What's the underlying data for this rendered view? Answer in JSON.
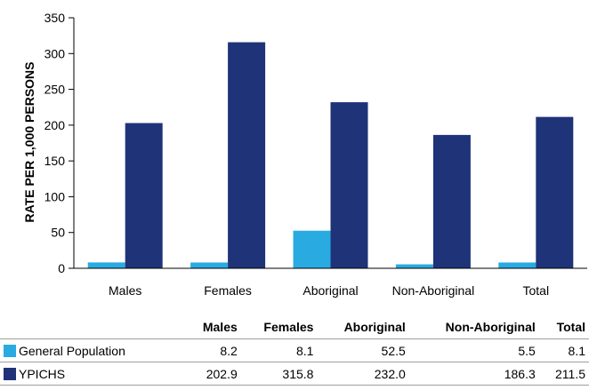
{
  "chart_data": {
    "type": "bar",
    "ylabel": "RATE PER 1,000 PERSONS",
    "xlabel": "",
    "ylim": [
      0,
      350
    ],
    "yticks": [
      0,
      50,
      100,
      150,
      200,
      250,
      300,
      350
    ],
    "categories": [
      "Males",
      "Females",
      "Aboriginal",
      "Non-Aboriginal",
      "Total"
    ],
    "series": [
      {
        "name": "General Population",
        "color": "#29abe2",
        "values": [
          8.2,
          8.1,
          52.5,
          5.5,
          8.1
        ],
        "labels": [
          "8.2",
          "8.1",
          "52.5",
          "5.5",
          "8.1"
        ]
      },
      {
        "name": "YPICHS",
        "color": "#1f3378",
        "values": [
          202.9,
          315.8,
          232.0,
          186.3,
          211.5
        ],
        "labels": [
          "202.9",
          "315.8",
          "232.0",
          "186.3",
          "211.5"
        ]
      }
    ],
    "grid": false,
    "legend": "table-below"
  }
}
